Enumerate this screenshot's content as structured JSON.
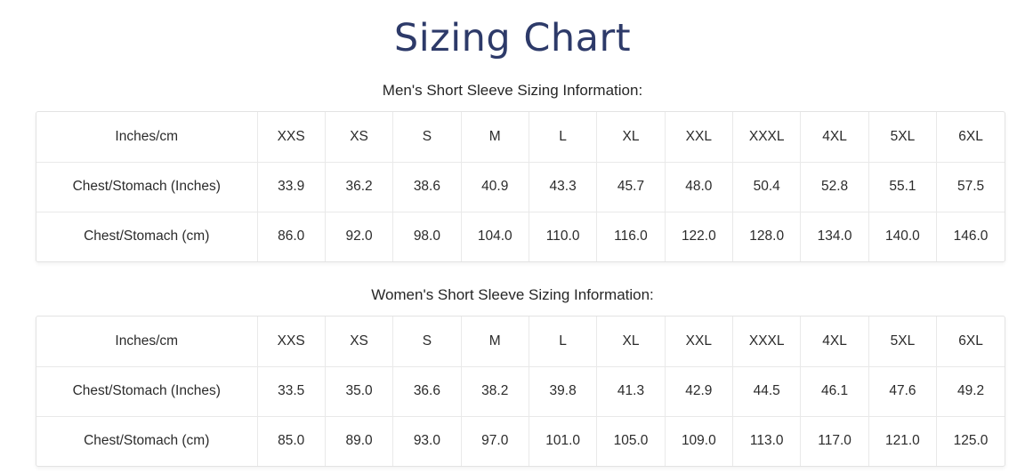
{
  "page": {
    "title": "Sizing Chart"
  },
  "colors": {
    "title": "#2d3a69",
    "table_border": "#e3e3e3",
    "cell_divider": "#e9e9e9",
    "text": "#2b2b2b"
  },
  "sections": [
    {
      "heading": "Men's Short Sleeve Sizing Information:",
      "table": {
        "corner_label": "Inches/cm",
        "sizes": [
          "XXS",
          "XS",
          "S",
          "M",
          "L",
          "XL",
          "XXL",
          "XXXL",
          "4XL",
          "5XL",
          "6XL"
        ],
        "rows": [
          {
            "label": "Chest/Stomach (Inches)",
            "values": [
              "33.9",
              "36.2",
              "38.6",
              "40.9",
              "43.3",
              "45.7",
              "48.0",
              "50.4",
              "52.8",
              "55.1",
              "57.5"
            ]
          },
          {
            "label": "Chest/Stomach (cm)",
            "values": [
              "86.0",
              "92.0",
              "98.0",
              "104.0",
              "110.0",
              "116.0",
              "122.0",
              "128.0",
              "134.0",
              "140.0",
              "146.0"
            ]
          }
        ]
      }
    },
    {
      "heading": "Women's Short Sleeve Sizing Information:",
      "table": {
        "corner_label": "Inches/cm",
        "sizes": [
          "XXS",
          "XS",
          "S",
          "M",
          "L",
          "XL",
          "XXL",
          "XXXL",
          "4XL",
          "5XL",
          "6XL"
        ],
        "rows": [
          {
            "label": "Chest/Stomach (Inches)",
            "values": [
              "33.5",
              "35.0",
              "36.6",
              "38.2",
              "39.8",
              "41.3",
              "42.9",
              "44.5",
              "46.1",
              "47.6",
              "49.2"
            ]
          },
          {
            "label": "Chest/Stomach (cm)",
            "values": [
              "85.0",
              "89.0",
              "93.0",
              "97.0",
              "101.0",
              "105.0",
              "109.0",
              "113.0",
              "117.0",
              "121.0",
              "125.0"
            ]
          }
        ]
      }
    }
  ]
}
